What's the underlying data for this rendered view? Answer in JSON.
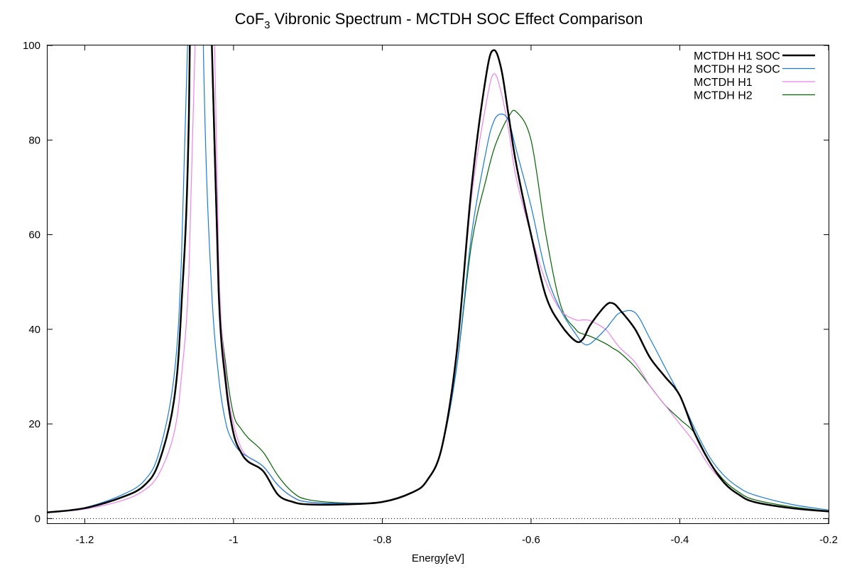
{
  "chart_data": {
    "type": "line",
    "title_main": "CoF",
    "title_sub": "3",
    "title_rest": " Vibronic Spectrum - MCTDH SOC Effect Comparison",
    "xlabel": "Energy[eV]",
    "ylabel": "",
    "xlim": [
      -1.25,
      -0.2
    ],
    "ylim": [
      -1,
      100
    ],
    "x_ticks": [
      -1.2,
      -1.0,
      -0.8,
      -0.6,
      -0.4,
      -0.2
    ],
    "x_tick_labels": [
      "-1.2",
      "-1",
      "-0.8",
      "-0.6",
      "-0.4",
      "-0.2"
    ],
    "y_ticks": [
      0,
      20,
      40,
      60,
      80,
      100
    ],
    "y_tick_labels": [
      "0",
      "20",
      "40",
      "60",
      "80",
      "100"
    ],
    "zero_line": true,
    "grid": false,
    "legend_position": "top-right",
    "series": [
      {
        "name": "MCTDH H1 SOC",
        "color": "#000000",
        "width": 2.5,
        "x": [
          -1.25,
          -1.2,
          -1.15,
          -1.12,
          -1.1,
          -1.08,
          -1.07,
          -1.06,
          -1.05,
          -1.04,
          -1.03,
          -1.02,
          -1.01,
          -1.0,
          -0.99,
          -0.98,
          -0.96,
          -0.94,
          -0.92,
          -0.9,
          -0.85,
          -0.8,
          -0.76,
          -0.74,
          -0.72,
          -0.7,
          -0.68,
          -0.66,
          -0.65,
          -0.64,
          -0.63,
          -0.62,
          -0.6,
          -0.58,
          -0.56,
          -0.54,
          -0.53,
          -0.52,
          -0.5,
          -0.49,
          -0.48,
          -0.46,
          -0.44,
          -0.42,
          -0.4,
          -0.38,
          -0.36,
          -0.34,
          -0.32,
          -0.3,
          -0.25,
          -0.2
        ],
        "y": [
          1.3,
          2.2,
          4.5,
          7.0,
          12,
          25,
          45,
          85,
          200,
          200,
          105,
          48,
          28,
          18,
          14,
          12,
          10,
          5,
          3.5,
          3,
          3,
          3.5,
          5.5,
          8,
          15,
          35,
          70,
          94,
          99,
          95,
          85,
          75,
          60,
          47,
          41,
          37.5,
          38,
          41,
          45,
          45.5,
          44,
          40,
          34,
          30,
          26,
          18,
          12,
          7.5,
          5,
          3.5,
          2.2,
          1.5
        ]
      },
      {
        "name": "MCTDH H2 SOC",
        "color": "#1a7bd8",
        "width": 1.2,
        "x": [
          -1.25,
          -1.2,
          -1.15,
          -1.12,
          -1.1,
          -1.08,
          -1.07,
          -1.06,
          -1.05,
          -1.04,
          -1.03,
          -1.02,
          -1.01,
          -1.0,
          -0.99,
          -0.98,
          -0.96,
          -0.94,
          -0.92,
          -0.9,
          -0.85,
          -0.8,
          -0.76,
          -0.74,
          -0.72,
          -0.7,
          -0.68,
          -0.66,
          -0.65,
          -0.64,
          -0.63,
          -0.62,
          -0.6,
          -0.58,
          -0.56,
          -0.54,
          -0.53,
          -0.52,
          -0.5,
          -0.49,
          -0.48,
          -0.46,
          -0.44,
          -0.42,
          -0.4,
          -0.38,
          -0.36,
          -0.34,
          -0.32,
          -0.3,
          -0.25,
          -0.2
        ],
        "y": [
          1.3,
          2.3,
          5.0,
          8.0,
          14,
          30,
          55,
          110,
          200,
          95,
          50,
          30,
          20,
          16,
          14,
          13,
          11,
          7,
          4.5,
          3.5,
          3.2,
          3.6,
          5.5,
          8,
          15,
          32,
          60,
          78,
          84,
          85.5,
          84,
          78,
          66,
          52,
          44,
          39,
          37,
          37,
          40,
          42,
          43.5,
          43.5,
          38,
          32,
          26,
          19,
          13,
          9,
          6.5,
          5,
          3,
          1.8
        ]
      },
      {
        "name": "MCTDH H1",
        "color": "#ee82ee",
        "width": 1.2,
        "x": [
          -1.25,
          -1.2,
          -1.15,
          -1.12,
          -1.1,
          -1.08,
          -1.07,
          -1.06,
          -1.05,
          -1.04,
          -1.03,
          -1.02,
          -1.01,
          -1.0,
          -0.99,
          -0.98,
          -0.96,
          -0.94,
          -0.92,
          -0.9,
          -0.85,
          -0.8,
          -0.76,
          -0.74,
          -0.72,
          -0.7,
          -0.68,
          -0.66,
          -0.65,
          -0.64,
          -0.63,
          -0.62,
          -0.6,
          -0.58,
          -0.56,
          -0.54,
          -0.53,
          -0.52,
          -0.5,
          -0.49,
          -0.48,
          -0.46,
          -0.44,
          -0.42,
          -0.4,
          -0.38,
          -0.36,
          -0.34,
          -0.32,
          -0.3,
          -0.25,
          -0.2
        ],
        "y": [
          1.2,
          2.0,
          3.8,
          6.0,
          9.5,
          18,
          30,
          52,
          110,
          200,
          140,
          55,
          30,
          20,
          15,
          13,
          11,
          7,
          4.5,
          3.5,
          3.2,
          3.5,
          5.5,
          8,
          15,
          35,
          68,
          88,
          94,
          90,
          82,
          72,
          60,
          50,
          44,
          42,
          42,
          41.8,
          40,
          38,
          36,
          33,
          28,
          24,
          20,
          16,
          11,
          7.5,
          5,
          3.5,
          2.2,
          1.4
        ]
      },
      {
        "name": "MCTDH H2",
        "color": "#006400",
        "width": 1.2,
        "x": [
          -1.25,
          -1.2,
          -1.15,
          -1.12,
          -1.1,
          -1.08,
          -1.07,
          -1.06,
          -1.05,
          -1.04,
          -1.03,
          -1.02,
          -1.01,
          -1.0,
          -0.99,
          -0.98,
          -0.96,
          -0.94,
          -0.92,
          -0.9,
          -0.85,
          -0.8,
          -0.76,
          -0.74,
          -0.72,
          -0.7,
          -0.68,
          -0.66,
          -0.65,
          -0.64,
          -0.63,
          -0.62,
          -0.6,
          -0.58,
          -0.56,
          -0.54,
          -0.53,
          -0.52,
          -0.5,
          -0.49,
          -0.48,
          -0.46,
          -0.44,
          -0.42,
          -0.4,
          -0.38,
          -0.36,
          -0.34,
          -0.32,
          -0.3,
          -0.25,
          -0.2
        ],
        "y": [
          1.3,
          2.2,
          4.5,
          7.0,
          12,
          25,
          45,
          85,
          200,
          200,
          105,
          50,
          32,
          22,
          19,
          17,
          14,
          9,
          5.5,
          4,
          3.3,
          3.5,
          5.5,
          8,
          15,
          32,
          58,
          72,
          78,
          82,
          85,
          86,
          80,
          60,
          45,
          40,
          39,
          38.5,
          37,
          36,
          35,
          32,
          28,
          24,
          21,
          18,
          12,
          8,
          5.5,
          4,
          2.5,
          1.6
        ]
      }
    ]
  }
}
